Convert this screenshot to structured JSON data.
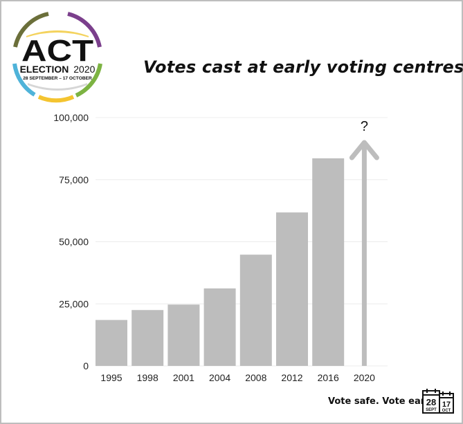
{
  "logo": {
    "line1": "ACT",
    "line2_bold": "ELECTION",
    "line2_year": "2020",
    "line3": "28 SEPTEMBER – 17 OCTOBER",
    "ring_colors": [
      "#6b6f3a",
      "#7b3f8c",
      "#7cb342",
      "#f4c430",
      "#4fb3d9"
    ]
  },
  "footer": {
    "text": "Vote safe. Vote early",
    "cal1_num": "28",
    "cal1_month": "SEPT",
    "cal2_num": "17",
    "cal2_month": "OCT"
  },
  "chart_data": {
    "type": "bar",
    "title": "Votes cast at early voting centres",
    "categories": [
      "1995",
      "1998",
      "2001",
      "2004",
      "2008",
      "2012",
      "2016",
      "2020"
    ],
    "values": [
      18500,
      22500,
      24700,
      31200,
      44800,
      61800,
      83600,
      null
    ],
    "yticks": [
      "0",
      "25,000",
      "50,000",
      "75,000",
      "100,000"
    ],
    "ylim": [
      0,
      100000
    ],
    "grid": true,
    "bar_color": "#bdbdbd",
    "annotation": {
      "category": "2020",
      "text": "?",
      "shape": "up-arrow"
    }
  }
}
